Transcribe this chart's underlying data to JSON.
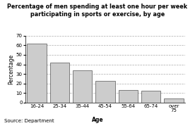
{
  "categories": [
    "16-24",
    "25-34",
    "35-44",
    "45-54",
    "55-64",
    "65-74",
    "over\n75"
  ],
  "values": [
    62,
    42,
    34,
    23,
    13,
    12,
    4
  ],
  "bar_color": "#cccccc",
  "bar_edgecolor": "#555555",
  "title_line1": "Percentage of men spending at least one hour per week",
  "title_line2": "participating in sports or exercise, by age",
  "ylabel": "Percentage",
  "xlabel": "Age",
  "source": "Source: Department",
  "ylim": [
    0,
    70
  ],
  "yticks": [
    0,
    10,
    20,
    30,
    40,
    50,
    60,
    70
  ],
  "background_color": "#ffffff",
  "grid_color": "#aaaaaa",
  "title_fontsize": 5.8,
  "axis_label_fontsize": 5.5,
  "tick_fontsize": 5.0,
  "source_fontsize": 5.0
}
